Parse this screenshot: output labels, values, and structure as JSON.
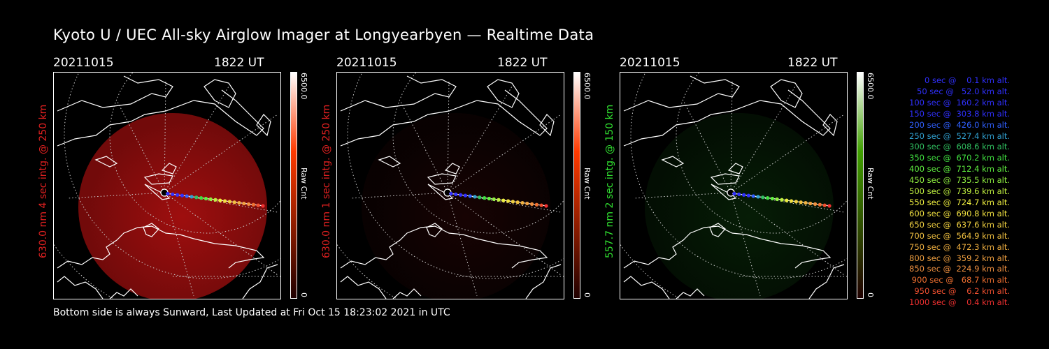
{
  "title": "Kyoto U / UEC All-sky Airglow Imager at Longyearbyen — Realtime Data",
  "footer": "Bottom side is always Sunward, Last Updated at Fri Oct 15 18:23:02 2021 in UTC",
  "panels": [
    {
      "date": "20211015",
      "time": "1822 UT",
      "side_label": "630.0 nm 4 sec intg. @ 250 km",
      "label_color": "#e02020",
      "cbar_max": "6500.0",
      "cbar_unit": "Raw Cnt",
      "cbar_min": "0",
      "cbar_color": "#ff3a00",
      "glow_color": "#b01010",
      "glow_level": 0.65
    },
    {
      "date": "20211015",
      "time": "1822 UT",
      "side_label": "630.0 nm 1 sec intg. @ 250 km",
      "label_color": "#e02020",
      "cbar_max": "6500.0",
      "cbar_unit": "Raw Cnt",
      "cbar_min": "0",
      "cbar_color": "#ff3a00",
      "glow_color": "#3a0808",
      "glow_level": 0.15
    },
    {
      "date": "20211015",
      "time": "1822 UT",
      "side_label": "557.7 nm 2 sec intg. @ 150 km",
      "label_color": "#30e030",
      "cbar_max": "6500.0",
      "cbar_unit": "Raw Cnt",
      "cbar_min": "0",
      "cbar_color": "#40a000",
      "glow_color": "#0c3a0c",
      "glow_level": 0.25
    }
  ],
  "trajectory_legend": [
    {
      "text": "   0 sec @    0.1 km alt.",
      "color": "#3030ff"
    },
    {
      "text": "  50 sec @   52.0 km alt.",
      "color": "#3030ff"
    },
    {
      "text": " 100 sec @  160.2 km alt.",
      "color": "#3030ff"
    },
    {
      "text": " 150 sec @  303.8 km alt.",
      "color": "#3030ff"
    },
    {
      "text": " 200 sec @  426.0 km alt.",
      "color": "#3060ff"
    },
    {
      "text": " 250 sec @  527.4 km alt.",
      "color": "#30a0d0"
    },
    {
      "text": " 300 sec @  608.6 km alt.",
      "color": "#30c060"
    },
    {
      "text": " 350 sec @  670.2 km alt.",
      "color": "#40e040"
    },
    {
      "text": " 400 sec @  712.4 km alt.",
      "color": "#60f040"
    },
    {
      "text": " 450 sec @  735.5 km alt.",
      "color": "#90f040"
    },
    {
      "text": " 500 sec @  739.6 km alt.",
      "color": "#c0f040"
    },
    {
      "text": " 550 sec @  724.7 km alt.",
      "color": "#f0f040"
    },
    {
      "text": " 600 sec @  690.8 km alt.",
      "color": "#f0e040"
    },
    {
      "text": " 650 sec @  637.6 km alt.",
      "color": "#f0d040"
    },
    {
      "text": " 700 sec @  564.9 km alt.",
      "color": "#f0c040"
    },
    {
      "text": " 750 sec @  472.3 km alt.",
      "color": "#f0b040"
    },
    {
      "text": " 800 sec @  359.2 km alt.",
      "color": "#f0a040"
    },
    {
      "text": " 850 sec @  224.9 km alt.",
      "color": "#f09040"
    },
    {
      "text": " 900 sec @   68.7 km alt.",
      "color": "#f07030"
    },
    {
      "text": " 950 sec @    6.2 km alt.",
      "color": "#f05030"
    },
    {
      "text": "1000 sec @    0.4 km alt.",
      "color": "#f03030"
    }
  ]
}
